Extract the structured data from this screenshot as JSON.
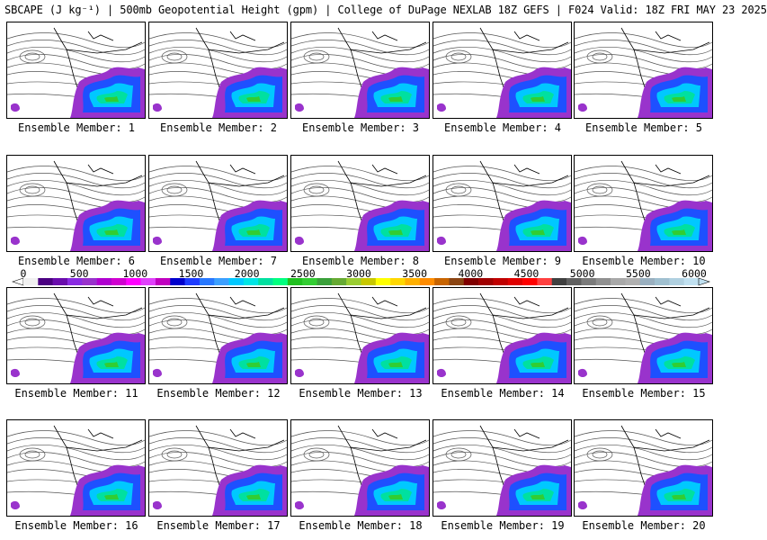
{
  "title": "SBCAPE (J kg⁻¹) | 500mb Geopotential Height (gpm) | College of DuPage NEXLAB 18Z GEFS | F024 Valid: 18Z FRI MAY 23 2025",
  "panels": [
    {
      "label": "Ensemble Member: 1"
    },
    {
      "label": "Ensemble Member: 2"
    },
    {
      "label": "Ensemble Member: 3"
    },
    {
      "label": "Ensemble Member: 4"
    },
    {
      "label": "Ensemble Member: 5"
    },
    {
      "label": "Ensemble Member: 6"
    },
    {
      "label": "Ensemble Member: 7"
    },
    {
      "label": "Ensemble Member: 8"
    },
    {
      "label": "Ensemble Member: 9"
    },
    {
      "label": "Ensemble Member: 10"
    },
    {
      "label": "Ensemble Member: 11"
    },
    {
      "label": "Ensemble Member: 12"
    },
    {
      "label": "Ensemble Member: 13"
    },
    {
      "label": "Ensemble Member: 14"
    },
    {
      "label": "Ensemble Member: 15"
    },
    {
      "label": "Ensemble Member: 16"
    },
    {
      "label": "Ensemble Member: 17"
    },
    {
      "label": "Ensemble Member: 18"
    },
    {
      "label": "Ensemble Member: 19"
    },
    {
      "label": "Ensemble Member: 20"
    }
  ],
  "colorbar": {
    "ticks": [
      "0",
      "500",
      "1000",
      "1500",
      "2000",
      "2500",
      "3000",
      "3500",
      "4000",
      "4500",
      "5000",
      "5500",
      "6000"
    ],
    "colors": [
      "#f0f0f0",
      "#4b0082",
      "#6a0dad",
      "#8a2be2",
      "#9932cc",
      "#b000d0",
      "#d000d0",
      "#ff00ff",
      "#e040fb",
      "#c000c0",
      "#0000cd",
      "#1e3cff",
      "#2878ff",
      "#3ca0ff",
      "#00c8ff",
      "#00e5e5",
      "#00e0a0",
      "#00ff7f",
      "#20c020",
      "#32cd32",
      "#3aa03a",
      "#66aa33",
      "#9acd32",
      "#c8c800",
      "#ffff00",
      "#ffd700",
      "#ffb000",
      "#ff8c00",
      "#c86400",
      "#8b4513",
      "#800000",
      "#a00000",
      "#c00000",
      "#e00000",
      "#ff0000",
      "#ff4040",
      "#404040",
      "#606060",
      "#7a7a7a",
      "#909090",
      "#a8a8a8",
      "#b0b0b0",
      "#9ab0c0",
      "#a0c0d0",
      "#b0d0e0",
      "#c0e0f0"
    ]
  }
}
